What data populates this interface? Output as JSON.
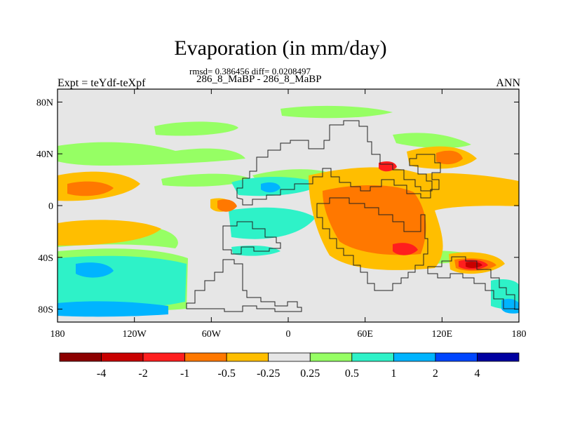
{
  "title": "Evaporation (in mm/day)",
  "stats": "rmsd= 0.386456 diff= 0.0208497",
  "subtitle": "286_8_MaBP - 286_8_MaBP",
  "left_label": "Expt = teYdf-teXpf",
  "right_label": "ANN",
  "map": {
    "projection": "cylindrical-equidistant",
    "lon_range": [
      -180,
      180
    ],
    "lat_range": [
      -90,
      90
    ],
    "background_color": "#e6e6e6",
    "x_ticks": [
      {
        "value": -180,
        "label": "180"
      },
      {
        "value": -120,
        "label": "120W"
      },
      {
        "value": -60,
        "label": "60W"
      },
      {
        "value": 0,
        "label": "0"
      },
      {
        "value": 60,
        "label": "60E"
      },
      {
        "value": 120,
        "label": "120E"
      },
      {
        "value": 180,
        "label": "180"
      }
    ],
    "y_ticks": [
      {
        "value": 80,
        "label": "80N"
      },
      {
        "value": 40,
        "label": "40N"
      },
      {
        "value": 0,
        "label": "0"
      },
      {
        "value": -40,
        "label": "40S"
      },
      {
        "value": -80,
        "label": "80S"
      }
    ]
  },
  "colorbar": {
    "colors": [
      "#8c0000",
      "#c80000",
      "#ff1e1e",
      "#ff7800",
      "#ffbe00",
      "#e6e6e6",
      "#96ff64",
      "#2ef2c8",
      "#00b4ff",
      "#0046ff",
      "#0000a0"
    ],
    "labels": [
      "-4",
      "-2",
      "-1",
      "-0.5",
      "-0.25",
      "0.25",
      "0.5",
      "1",
      "2",
      "4"
    ]
  }
}
